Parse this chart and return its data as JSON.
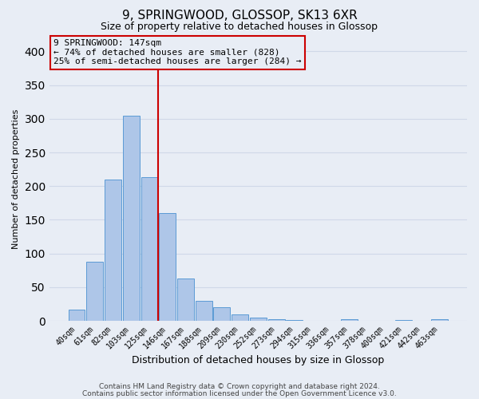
{
  "title": "9, SPRINGWOOD, GLOSSOP, SK13 6XR",
  "subtitle": "Size of property relative to detached houses in Glossop",
  "xlabel": "Distribution of detached houses by size in Glossop",
  "ylabel": "Number of detached properties",
  "bar_labels": [
    "40sqm",
    "61sqm",
    "82sqm",
    "103sqm",
    "125sqm",
    "146sqm",
    "167sqm",
    "188sqm",
    "209sqm",
    "230sqm",
    "252sqm",
    "273sqm",
    "294sqm",
    "315sqm",
    "336sqm",
    "357sqm",
    "378sqm",
    "400sqm",
    "421sqm",
    "442sqm",
    "463sqm"
  ],
  "bar_values": [
    17,
    88,
    210,
    305,
    213,
    160,
    63,
    30,
    20,
    10,
    5,
    2,
    1,
    0,
    0,
    2,
    0,
    0,
    1,
    0,
    2
  ],
  "bar_color": "#aec6e8",
  "bar_edge_color": "#5b9bd5",
  "ylim": [
    0,
    420
  ],
  "yticks": [
    0,
    50,
    100,
    150,
    200,
    250,
    300,
    350,
    400
  ],
  "vline_index": 5,
  "vline_color": "#cc0000",
  "annotation_title": "9 SPRINGWOOD: 147sqm",
  "annotation_line1": "← 74% of detached houses are smaller (828)",
  "annotation_line2": "25% of semi-detached houses are larger (284) →",
  "annotation_box_color": "#cc0000",
  "footer_line1": "Contains HM Land Registry data © Crown copyright and database right 2024.",
  "footer_line2": "Contains public sector information licensed under the Open Government Licence v3.0.",
  "bg_color": "#e8edf5",
  "grid_color": "#d0d8e8"
}
